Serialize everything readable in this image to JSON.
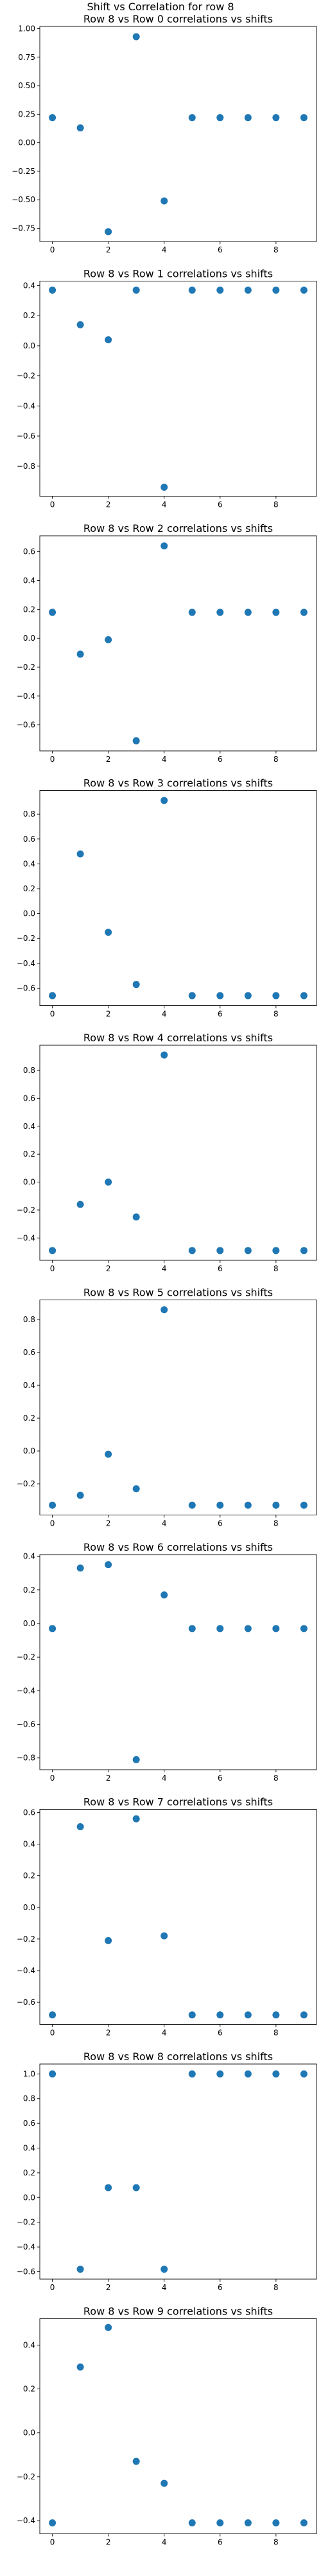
{
  "figure": {
    "title": "Shift vs Correlation for row 8",
    "marker_color": "#1f77b4"
  },
  "chart_data": [
    {
      "type": "scatter",
      "title": "Row 8 vs Row 0 correlations vs shifts",
      "x": [
        0,
        1,
        2,
        3,
        4,
        5,
        6,
        7,
        8,
        9
      ],
      "y": [
        0.22,
        0.13,
        -0.78,
        0.93,
        -0.51,
        0.22,
        0.22,
        0.22,
        0.22,
        0.22
      ],
      "xticks": [
        0,
        2,
        4,
        6,
        8
      ],
      "yticks": [
        -0.75,
        -0.5,
        -0.25,
        0.0,
        0.25,
        0.5,
        0.75,
        1.0
      ],
      "ytick_labels": [
        "−0.75",
        "−0.50",
        "−0.25",
        "0.00",
        "0.25",
        "0.50",
        "0.75",
        "1.00"
      ],
      "xlim": [
        -0.45,
        9.45
      ],
      "ylim": [
        -0.866,
        1.02
      ],
      "grid": false
    },
    {
      "type": "scatter",
      "title": "Row 8 vs Row 1 correlations vs shifts",
      "x": [
        0,
        1,
        2,
        3,
        4,
        5,
        6,
        7,
        8,
        9
      ],
      "y": [
        0.37,
        0.14,
        0.04,
        0.37,
        -0.94,
        0.37,
        0.37,
        0.37,
        0.37,
        0.37
      ],
      "xticks": [
        0,
        2,
        4,
        6,
        8
      ],
      "yticks": [
        -0.8,
        -0.6,
        -0.4,
        -0.2,
        0.0,
        0.2,
        0.4
      ],
      "ytick_labels": [
        "−0.8",
        "−0.6",
        "−0.4",
        "−0.2",
        "0.0",
        "0.2",
        "0.4"
      ],
      "xlim": [
        -0.45,
        9.45
      ],
      "ylim": [
        -1.0,
        0.43
      ],
      "grid": false
    },
    {
      "type": "scatter",
      "title": "Row 8 vs Row 2 correlations vs shifts",
      "x": [
        0,
        1,
        2,
        3,
        4,
        5,
        6,
        7,
        8,
        9
      ],
      "y": [
        0.18,
        -0.11,
        -0.01,
        -0.71,
        0.64,
        0.18,
        0.18,
        0.18,
        0.18,
        0.18
      ],
      "xticks": [
        0,
        2,
        4,
        6,
        8
      ],
      "yticks": [
        -0.6,
        -0.4,
        -0.2,
        0.0,
        0.2,
        0.4,
        0.6
      ],
      "ytick_labels": [
        "−0.6",
        "−0.4",
        "−0.2",
        "0.0",
        "0.2",
        "0.4",
        "0.6"
      ],
      "xlim": [
        -0.45,
        9.45
      ],
      "ylim": [
        -0.78,
        0.71
      ],
      "grid": false
    },
    {
      "type": "scatter",
      "title": "Row 8 vs Row 3 correlations vs shifts",
      "x": [
        0,
        1,
        2,
        3,
        4,
        5,
        6,
        7,
        8,
        9
      ],
      "y": [
        -0.66,
        0.48,
        -0.15,
        -0.57,
        0.91,
        -0.66,
        -0.66,
        -0.66,
        -0.66,
        -0.66
      ],
      "xticks": [
        0,
        2,
        4,
        6,
        8
      ],
      "yticks": [
        -0.6,
        -0.4,
        -0.2,
        0.0,
        0.2,
        0.4,
        0.6,
        0.8
      ],
      "ytick_labels": [
        "−0.6",
        "−0.4",
        "−0.2",
        "0.0",
        "0.2",
        "0.4",
        "0.6",
        "0.8"
      ],
      "xlim": [
        -0.45,
        9.45
      ],
      "ylim": [
        -0.74,
        0.99
      ],
      "grid": false
    },
    {
      "type": "scatter",
      "title": "Row 8 vs Row 4 correlations vs shifts",
      "x": [
        0,
        1,
        2,
        3,
        4,
        5,
        6,
        7,
        8,
        9
      ],
      "y": [
        -0.49,
        -0.16,
        0.0,
        -0.25,
        0.91,
        -0.49,
        -0.49,
        -0.49,
        -0.49,
        -0.49
      ],
      "xticks": [
        0,
        2,
        4,
        6,
        8
      ],
      "yticks": [
        -0.4,
        -0.2,
        0.0,
        0.2,
        0.4,
        0.6,
        0.8
      ],
      "ytick_labels": [
        "−0.4",
        "−0.2",
        "0.0",
        "0.2",
        "0.4",
        "0.6",
        "0.8"
      ],
      "xlim": [
        -0.45,
        9.45
      ],
      "ylim": [
        -0.56,
        0.98
      ],
      "grid": false
    },
    {
      "type": "scatter",
      "title": "Row 8 vs Row 5 correlations vs shifts",
      "x": [
        0,
        1,
        2,
        3,
        4,
        5,
        6,
        7,
        8,
        9
      ],
      "y": [
        -0.33,
        -0.27,
        -0.02,
        -0.23,
        0.86,
        -0.33,
        -0.33,
        -0.33,
        -0.33,
        -0.33
      ],
      "xticks": [
        0,
        2,
        4,
        6,
        8
      ],
      "yticks": [
        -0.2,
        0.0,
        0.2,
        0.4,
        0.6,
        0.8
      ],
      "ytick_labels": [
        "−0.2",
        "0.0",
        "0.2",
        "0.4",
        "0.6",
        "0.8"
      ],
      "xlim": [
        -0.45,
        9.45
      ],
      "ylim": [
        -0.39,
        0.92
      ],
      "grid": false
    },
    {
      "type": "scatter",
      "title": "Row 8 vs Row 6 correlations vs shifts",
      "x": [
        0,
        1,
        2,
        3,
        4,
        5,
        6,
        7,
        8,
        9
      ],
      "y": [
        -0.03,
        0.33,
        0.35,
        -0.81,
        0.17,
        -0.03,
        -0.03,
        -0.03,
        -0.03,
        -0.03
      ],
      "xticks": [
        0,
        2,
        4,
        6,
        8
      ],
      "yticks": [
        -0.8,
        -0.6,
        -0.4,
        -0.2,
        0.0,
        0.2,
        0.4
      ],
      "ytick_labels": [
        "−0.8",
        "−0.6",
        "−0.4",
        "−0.2",
        "0.0",
        "0.2",
        "0.4"
      ],
      "xlim": [
        -0.45,
        9.45
      ],
      "ylim": [
        -0.87,
        0.41
      ],
      "grid": false
    },
    {
      "type": "scatter",
      "title": "Row 8 vs Row 7 correlations vs shifts",
      "x": [
        0,
        1,
        2,
        3,
        4,
        5,
        6,
        7,
        8,
        9
      ],
      "y": [
        -0.68,
        0.51,
        -0.21,
        0.56,
        -0.18,
        -0.68,
        -0.68,
        -0.68,
        -0.68,
        -0.68
      ],
      "xticks": [
        0,
        2,
        4,
        6,
        8
      ],
      "yticks": [
        -0.6,
        -0.4,
        -0.2,
        0.0,
        0.2,
        0.4,
        0.6
      ],
      "ytick_labels": [
        "−0.6",
        "−0.4",
        "−0.2",
        "0.0",
        "0.2",
        "0.4",
        "0.6"
      ],
      "xlim": [
        -0.45,
        9.45
      ],
      "ylim": [
        -0.74,
        0.62
      ],
      "grid": false
    },
    {
      "type": "scatter",
      "title": "Row 8 vs Row 8 correlations vs shifts",
      "x": [
        0,
        1,
        2,
        3,
        4,
        5,
        6,
        7,
        8,
        9
      ],
      "y": [
        1.0,
        -0.58,
        0.08,
        0.08,
        -0.58,
        1.0,
        1.0,
        1.0,
        1.0,
        1.0
      ],
      "xticks": [
        0,
        2,
        4,
        6,
        8
      ],
      "yticks": [
        -0.6,
        -0.4,
        -0.2,
        0.0,
        0.2,
        0.4,
        0.6,
        0.8,
        1.0
      ],
      "ytick_labels": [
        "−0.6",
        "−0.4",
        "−0.2",
        "0.0",
        "0.2",
        "0.4",
        "0.6",
        "0.8",
        "1.0"
      ],
      "xlim": [
        -0.45,
        9.45
      ],
      "ylim": [
        -0.66,
        1.08
      ],
      "grid": false
    },
    {
      "type": "scatter",
      "title": "Row 8 vs Row 9 correlations vs shifts",
      "x": [
        0,
        1,
        2,
        3,
        4,
        5,
        6,
        7,
        8,
        9
      ],
      "y": [
        -0.41,
        0.3,
        0.48,
        -0.13,
        -0.23,
        -0.41,
        -0.41,
        -0.41,
        -0.41,
        -0.41
      ],
      "xticks": [
        0,
        2,
        4,
        6,
        8
      ],
      "yticks": [
        -0.4,
        -0.2,
        0.0,
        0.2,
        0.4
      ],
      "ytick_labels": [
        "−0.4",
        "−0.2",
        "0.0",
        "0.2",
        "0.4"
      ],
      "xlim": [
        -0.45,
        9.45
      ],
      "ylim": [
        -0.46,
        0.52
      ],
      "grid": false
    }
  ]
}
